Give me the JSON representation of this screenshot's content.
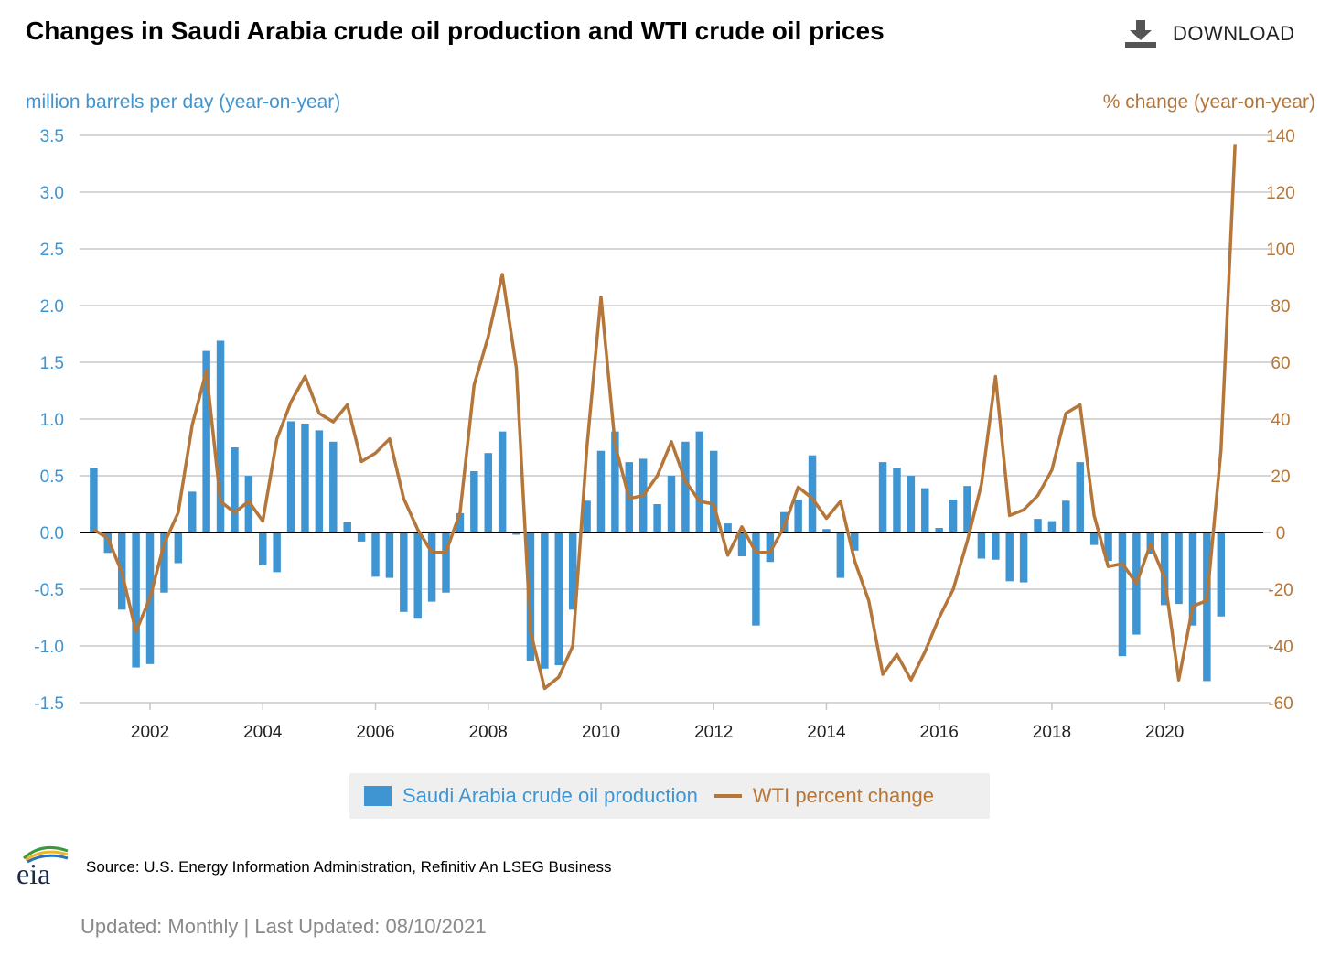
{
  "header": {
    "title": "Changes in Saudi Arabia crude oil production and WTI crude oil prices",
    "download_label": "DOWNLOAD",
    "download_icon": "download-icon"
  },
  "colors": {
    "production": "#3f95d1",
    "wti": "#b5763a",
    "left_axis": "#3f95d1",
    "right_axis": "#b5763a",
    "grid": "#c8c8c8",
    "zero_line": "#000000",
    "legend_bg": "#efefef"
  },
  "chart_data": {
    "type": "bar+line",
    "left_axis": {
      "label": "million barrels per day (year-on-year)",
      "min": -1.5,
      "max": 3.5,
      "ticks": [
        3.5,
        3.0,
        2.5,
        2.0,
        1.5,
        1.0,
        0.5,
        0.0,
        -0.5,
        -1.0,
        -1.5
      ],
      "tick_labels": [
        "3.5",
        "3.0",
        "2.5",
        "2.0",
        "1.5",
        "1.0",
        "0.5",
        "0.0",
        "-0.5",
        "-1.0",
        "-1.5"
      ]
    },
    "right_axis": {
      "label": "% change (year-on-year)",
      "min": -60,
      "max": 140,
      "ticks": [
        140,
        120,
        100,
        80,
        60,
        40,
        20,
        0,
        -20,
        -40,
        -60
      ],
      "tick_labels": [
        "140",
        "120",
        "100",
        "80",
        "60",
        "40",
        "20",
        "0",
        "-20",
        "-40",
        "-60"
      ]
    },
    "x_axis": {
      "min": 2000.75,
      "max": 2021.75,
      "ticks": [
        2002,
        2004,
        2006,
        2008,
        2010,
        2012,
        2014,
        2016,
        2018,
        2020
      ],
      "tick_labels": [
        "2002",
        "2004",
        "2006",
        "2008",
        "2010",
        "2012",
        "2014",
        "2016",
        "2018",
        "2020"
      ]
    },
    "x_start": 2001.0,
    "x_step": 0.25,
    "series": [
      {
        "name": "Saudi Arabia crude oil production",
        "kind": "bar",
        "axis": "left",
        "values": [
          0.57,
          -0.18,
          -0.68,
          -1.19,
          -1.16,
          -0.53,
          -0.27,
          0.36,
          1.6,
          1.69,
          0.75,
          0.5,
          -0.29,
          -0.35,
          0.98,
          0.96,
          0.9,
          0.8,
          0.09,
          -0.08,
          -0.39,
          -0.4,
          -0.7,
          -0.76,
          -0.61,
          -0.53,
          0.17,
          0.54,
          0.7,
          0.89,
          -0.02,
          -1.13,
          -1.2,
          -1.17,
          -0.68,
          0.28,
          0.72,
          0.89,
          0.62,
          0.65,
          0.25,
          0.5,
          0.8,
          0.89,
          0.72,
          0.08,
          -0.21,
          -0.82,
          -0.26,
          0.18,
          0.29,
          0.68,
          0.03,
          -0.4,
          -0.16,
          0.0,
          0.62,
          0.57,
          0.5,
          0.39,
          0.04,
          0.29,
          0.41,
          -0.23,
          -0.24,
          -0.43,
          -0.44,
          0.12,
          0.1,
          0.28,
          0.62,
          -0.11,
          -0.25,
          -1.09,
          -0.9,
          -0.19,
          -0.64,
          -0.63,
          -0.82,
          -1.31,
          -0.74
        ]
      },
      {
        "name": "WTI percent change",
        "kind": "line",
        "axis": "right",
        "values": [
          1,
          -2,
          -14,
          -35,
          -23,
          -4,
          7,
          38,
          57,
          11,
          7,
          11,
          4,
          33,
          46,
          55,
          42,
          39,
          45,
          25,
          28,
          33,
          12,
          1,
          -7,
          -7,
          7,
          52,
          69,
          91,
          58,
          -35,
          -55,
          -51,
          -40,
          30,
          83,
          31,
          12,
          13,
          20,
          32,
          18,
          11,
          10,
          -8,
          2,
          -7,
          -7,
          2,
          16,
          12,
          5,
          11,
          -10,
          -24,
          -50,
          -43,
          -52,
          -42,
          -30,
          -20,
          -3,
          17,
          55,
          6,
          8,
          13,
          22,
          42,
          45,
          6,
          -12,
          -11,
          -18,
          -4,
          -16,
          -52,
          -26,
          -24,
          29,
          137
        ]
      }
    ],
    "legend": [
      "Saudi Arabia crude oil production",
      "WTI percent change"
    ],
    "legend_position": "bottom-center",
    "grid": true
  },
  "footer": {
    "source": "Source: U.S. Energy Information Administration, Refinitiv An LSEG Business",
    "updated": "Updated: Monthly | Last Updated: 08/10/2021",
    "logo_text": "eia"
  }
}
